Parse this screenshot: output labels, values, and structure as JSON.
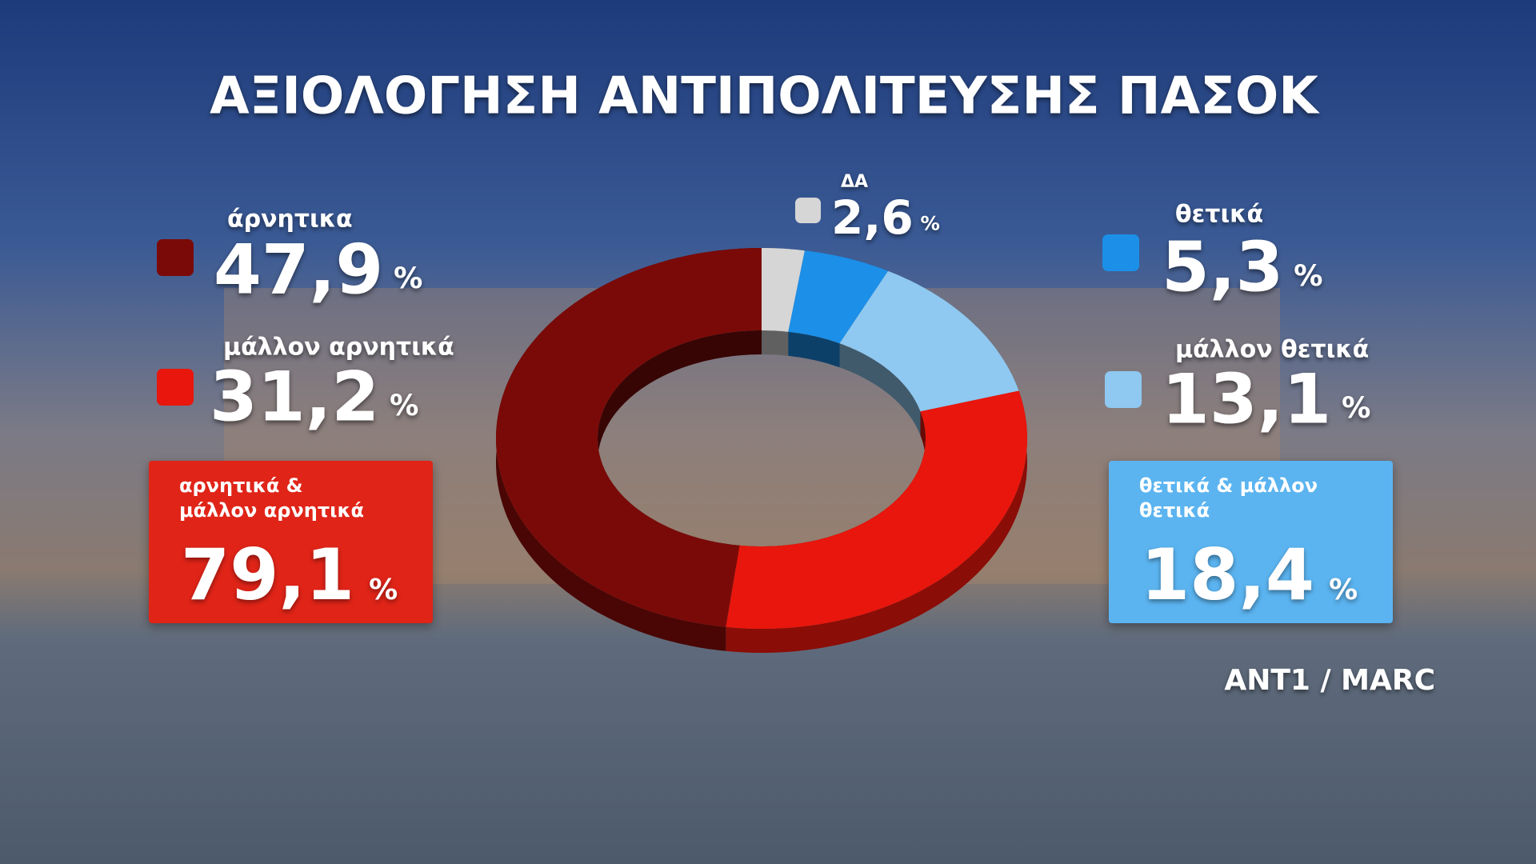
{
  "chart_data": {
    "type": "pie",
    "title": "ΑΞΙΟΛΟΓΗΣΗ ΑΝΤΙΠΟΛΙΤΕΥΣΗΣ ΠΑΣΟΚ",
    "categories": [
      "ΔΑ",
      "θετικά",
      "μάλλον θετικά",
      "μάλλον αρνητικά",
      "άρνητικα"
    ],
    "values": [
      2.6,
      5.3,
      13.1,
      31.2,
      47.9
    ],
    "value_labels": [
      "2,6",
      "5,3",
      "13,1",
      "31,2",
      "47,9"
    ],
    "colors": [
      "#d6d6d6",
      "#1c8fe8",
      "#8fc8f0",
      "#e8160c",
      "#7a0a08"
    ],
    "unit": "%",
    "totals": [
      {
        "label": "αρνητικά & μάλλον αρνητικά",
        "value": 79.1,
        "value_label": "79,1",
        "color": "#e02418"
      },
      {
        "label": "θετικά & μάλλον θετικά",
        "value": 18.4,
        "value_label": "18,4",
        "color": "#5bb4f0"
      }
    ],
    "source": "ANT1 / MARC"
  }
}
